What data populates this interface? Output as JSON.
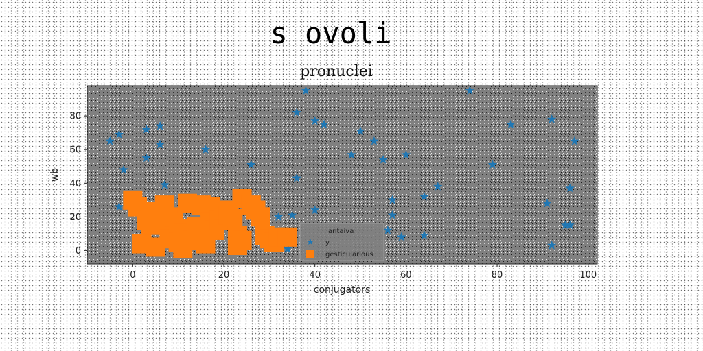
{
  "suptitle": "s ovoli",
  "chart_data": {
    "type": "scatter",
    "title": "pronuclei",
    "xlabel": "conjugators",
    "ylabel": "wb",
    "xlim": [
      -10,
      102
    ],
    "ylim": [
      -8,
      98
    ],
    "xticks": [
      0,
      20,
      40,
      60,
      80,
      100
    ],
    "yticks": [
      0,
      20,
      40,
      60,
      80
    ],
    "grid": false,
    "legend": {
      "placement": "lower-center",
      "title": "antaiva"
    },
    "series": [
      {
        "name": "y",
        "marker": "star",
        "color": "#1f77b4",
        "points": [
          [
            -5,
            65
          ],
          [
            -3,
            69
          ],
          [
            -2,
            48
          ],
          [
            -3,
            26
          ],
          [
            3,
            72
          ],
          [
            6,
            74
          ],
          [
            6,
            63
          ],
          [
            3,
            55
          ],
          [
            7,
            39
          ],
          [
            16,
            60
          ],
          [
            26,
            51
          ],
          [
            32,
            20
          ],
          [
            34,
            1
          ],
          [
            35,
            21
          ],
          [
            36,
            43
          ],
          [
            36,
            82
          ],
          [
            38,
            95
          ],
          [
            40,
            77
          ],
          [
            42,
            75
          ],
          [
            40,
            24
          ],
          [
            48,
            57
          ],
          [
            50,
            71
          ],
          [
            53,
            65
          ],
          [
            55,
            54
          ],
          [
            56,
            12
          ],
          [
            57,
            21
          ],
          [
            57,
            30
          ],
          [
            59,
            8
          ],
          [
            60,
            57
          ],
          [
            64,
            32
          ],
          [
            64,
            9
          ],
          [
            67,
            38
          ],
          [
            74,
            95
          ],
          [
            79,
            51
          ],
          [
            83,
            75
          ],
          [
            91,
            28
          ],
          [
            92,
            78
          ],
          [
            92,
            3
          ],
          [
            95,
            15
          ],
          [
            96,
            15
          ],
          [
            96,
            37
          ],
          [
            97,
            65
          ]
        ]
      },
      {
        "name": "gesticularious",
        "marker": "square",
        "color": "#ff7f0e",
        "points": [
          [
            0,
            30
          ],
          [
            1,
            26
          ],
          [
            2,
            4
          ],
          [
            3,
            18
          ],
          [
            4,
            23
          ],
          [
            4,
            15
          ],
          [
            5,
            2
          ],
          [
            6,
            22
          ],
          [
            7,
            27
          ],
          [
            7,
            15
          ],
          [
            8,
            7
          ],
          [
            9,
            20
          ],
          [
            10,
            13
          ],
          [
            10,
            5
          ],
          [
            11,
            10
          ],
          [
            11,
            1
          ],
          [
            12,
            28
          ],
          [
            13,
            6
          ],
          [
            14,
            14
          ],
          [
            15,
            27
          ],
          [
            15,
            9
          ],
          [
            16,
            4
          ],
          [
            17,
            26
          ],
          [
            17,
            17
          ],
          [
            18,
            12
          ],
          [
            19,
            18
          ],
          [
            20,
            24
          ],
          [
            21,
            21
          ],
          [
            22,
            19
          ],
          [
            23,
            9
          ],
          [
            23,
            3
          ],
          [
            24,
            31
          ],
          [
            24,
            6
          ],
          [
            26,
            27
          ],
          [
            27,
            24
          ],
          [
            28,
            20
          ],
          [
            29,
            9
          ],
          [
            30,
            7
          ],
          [
            31,
            5
          ],
          [
            32,
            8
          ],
          [
            34,
            8
          ]
        ]
      }
    ]
  }
}
